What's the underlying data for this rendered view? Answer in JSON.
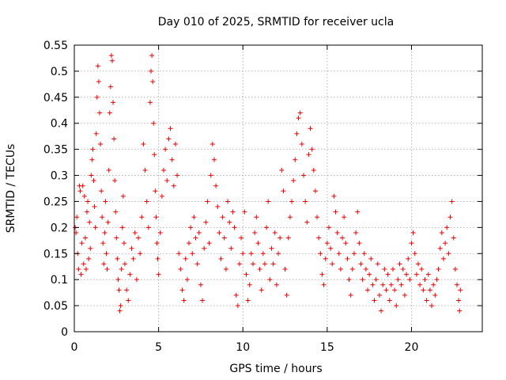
{
  "chart_data": {
    "type": "scatter",
    "title": "Day 010 of 2025, SRMTID for receiver ucla",
    "xlabel": "GPS time / hours",
    "ylabel": "SRMTID / TECUs",
    "xlim": [
      0,
      24.2
    ],
    "ylim": [
      0,
      0.55
    ],
    "x_ticks": [
      0,
      5,
      10,
      15,
      20
    ],
    "x_tick_labels": [
      "0",
      "5",
      "10",
      "15",
      "20"
    ],
    "y_ticks": [
      0,
      0.05,
      0.1,
      0.15,
      0.2,
      0.25,
      0.3,
      0.35,
      0.4,
      0.45,
      0.5,
      0.55
    ],
    "y_tick_labels": [
      "0",
      "0.05",
      "0.1",
      "0.15",
      "0.2",
      "0.25",
      "0.3",
      "0.35",
      "0.4",
      "0.45",
      "0.5",
      "0.55"
    ],
    "grid": true,
    "marker": "+",
    "marker_color": "#ee0000",
    "series": [
      {
        "name": "SRMTID",
        "points": [
          [
            0.05,
            0.2
          ],
          [
            0.1,
            0.19
          ],
          [
            0.15,
            0.22
          ],
          [
            0.2,
            0.15
          ],
          [
            0.25,
            0.12
          ],
          [
            0.3,
            0.28
          ],
          [
            0.35,
            0.27
          ],
          [
            0.4,
            0.11
          ],
          [
            0.45,
            0.17
          ],
          [
            0.5,
            0.28
          ],
          [
            0.55,
            0.13
          ],
          [
            0.6,
            0.26
          ],
          [
            0.65,
            0.18
          ],
          [
            0.7,
            0.12
          ],
          [
            0.75,
            0.23
          ],
          [
            0.8,
            0.25
          ],
          [
            0.85,
            0.14
          ],
          [
            0.9,
            0.21
          ],
          [
            0.95,
            0.16
          ],
          [
            1.0,
            0.3
          ],
          [
            1.05,
            0.33
          ],
          [
            1.1,
            0.35
          ],
          [
            1.15,
            0.29
          ],
          [
            1.2,
            0.24
          ],
          [
            1.25,
            0.2
          ],
          [
            1.3,
            0.38
          ],
          [
            1.35,
            0.45
          ],
          [
            1.4,
            0.51
          ],
          [
            1.45,
            0.48
          ],
          [
            1.5,
            0.42
          ],
          [
            1.55,
            0.36
          ],
          [
            1.6,
            0.27
          ],
          [
            1.65,
            0.22
          ],
          [
            1.7,
            0.17
          ],
          [
            1.75,
            0.13
          ],
          [
            1.8,
            0.19
          ],
          [
            1.85,
            0.25
          ],
          [
            1.9,
            0.15
          ],
          [
            1.95,
            0.12
          ],
          [
            2.0,
            0.21
          ],
          [
            2.05,
            0.31
          ],
          [
            2.1,
            0.42
          ],
          [
            2.15,
            0.47
          ],
          [
            2.2,
            0.53
          ],
          [
            2.25,
            0.52
          ],
          [
            2.3,
            0.44
          ],
          [
            2.35,
            0.37
          ],
          [
            2.4,
            0.29
          ],
          [
            2.45,
            0.23
          ],
          [
            2.5,
            0.18
          ],
          [
            2.55,
            0.14
          ],
          [
            2.6,
            0.1
          ],
          [
            2.65,
            0.08
          ],
          [
            2.7,
            0.04
          ],
          [
            2.75,
            0.05
          ],
          [
            2.8,
            0.12
          ],
          [
            2.85,
            0.2
          ],
          [
            2.9,
            0.26
          ],
          [
            2.95,
            0.17
          ],
          [
            3.0,
            0.13
          ],
          [
            3.1,
            0.08
          ],
          [
            3.2,
            0.06
          ],
          [
            3.3,
            0.11
          ],
          [
            3.4,
            0.16
          ],
          [
            3.5,
            0.14
          ],
          [
            3.6,
            0.19
          ],
          [
            3.7,
            0.1
          ],
          [
            3.8,
            0.18
          ],
          [
            3.9,
            0.15
          ],
          [
            4.0,
            0.22
          ],
          [
            4.1,
            0.36
          ],
          [
            4.2,
            0.31
          ],
          [
            4.3,
            0.25
          ],
          [
            4.4,
            0.2
          ],
          [
            4.5,
            0.44
          ],
          [
            4.55,
            0.5
          ],
          [
            4.6,
            0.53
          ],
          [
            4.65,
            0.48
          ],
          [
            4.7,
            0.4
          ],
          [
            4.75,
            0.34
          ],
          [
            4.8,
            0.27
          ],
          [
            4.85,
            0.22
          ],
          [
            4.9,
            0.17
          ],
          [
            4.95,
            0.14
          ],
          [
            5.0,
            0.11
          ],
          [
            5.1,
            0.19
          ],
          [
            5.2,
            0.26
          ],
          [
            5.3,
            0.31
          ],
          [
            5.4,
            0.35
          ],
          [
            5.5,
            0.29
          ],
          [
            5.6,
            0.37
          ],
          [
            5.7,
            0.39
          ],
          [
            5.8,
            0.33
          ],
          [
            5.9,
            0.28
          ],
          [
            6.0,
            0.36
          ],
          [
            6.1,
            0.3
          ],
          [
            6.2,
            0.15
          ],
          [
            6.3,
            0.12
          ],
          [
            6.4,
            0.08
          ],
          [
            6.5,
            0.06
          ],
          [
            6.6,
            0.14
          ],
          [
            6.7,
            0.1
          ],
          [
            6.8,
            0.17
          ],
          [
            6.9,
            0.2
          ],
          [
            7.0,
            0.15
          ],
          [
            7.1,
            0.22
          ],
          [
            7.2,
            0.18
          ],
          [
            7.3,
            0.13
          ],
          [
            7.4,
            0.19
          ],
          [
            7.5,
            0.09
          ],
          [
            7.6,
            0.06
          ],
          [
            7.7,
            0.16
          ],
          [
            7.8,
            0.21
          ],
          [
            7.9,
            0.25
          ],
          [
            8.0,
            0.17
          ],
          [
            8.1,
            0.3
          ],
          [
            8.2,
            0.36
          ],
          [
            8.3,
            0.33
          ],
          [
            8.4,
            0.28
          ],
          [
            8.5,
            0.24
          ],
          [
            8.6,
            0.19
          ],
          [
            8.7,
            0.14
          ],
          [
            8.8,
            0.22
          ],
          [
            8.9,
            0.18
          ],
          [
            9.0,
            0.12
          ],
          [
            9.1,
            0.25
          ],
          [
            9.2,
            0.21
          ],
          [
            9.3,
            0.16
          ],
          [
            9.4,
            0.23
          ],
          [
            9.5,
            0.2
          ],
          [
            9.6,
            0.07
          ],
          [
            9.7,
            0.05
          ],
          [
            9.8,
            0.13
          ],
          [
            9.9,
            0.18
          ],
          [
            10.0,
            0.15
          ],
          [
            10.1,
            0.23
          ],
          [
            10.2,
            0.11
          ],
          [
            10.3,
            0.06
          ],
          [
            10.4,
            0.09
          ],
          [
            10.5,
            0.15
          ],
          [
            10.6,
            0.13
          ],
          [
            10.7,
            0.19
          ],
          [
            10.8,
            0.22
          ],
          [
            10.9,
            0.17
          ],
          [
            11.0,
            0.12
          ],
          [
            11.1,
            0.08
          ],
          [
            11.2,
            0.15
          ],
          [
            11.3,
            0.13
          ],
          [
            11.4,
            0.2
          ],
          [
            11.5,
            0.25
          ],
          [
            11.6,
            0.1
          ],
          [
            11.7,
            0.16
          ],
          [
            11.8,
            0.13
          ],
          [
            11.9,
            0.19
          ],
          [
            12.0,
            0.09
          ],
          [
            12.1,
            0.15
          ],
          [
            12.2,
            0.18
          ],
          [
            12.3,
            0.31
          ],
          [
            12.4,
            0.27
          ],
          [
            12.5,
            0.12
          ],
          [
            12.6,
            0.07
          ],
          [
            12.7,
            0.18
          ],
          [
            12.8,
            0.22
          ],
          [
            12.9,
            0.25
          ],
          [
            13.0,
            0.29
          ],
          [
            13.1,
            0.33
          ],
          [
            13.2,
            0.38
          ],
          [
            13.3,
            0.41
          ],
          [
            13.4,
            0.42
          ],
          [
            13.5,
            0.36
          ],
          [
            13.6,
            0.3
          ],
          [
            13.7,
            0.25
          ],
          [
            13.8,
            0.21
          ],
          [
            13.9,
            0.34
          ],
          [
            14.0,
            0.39
          ],
          [
            14.1,
            0.35
          ],
          [
            14.2,
            0.31
          ],
          [
            14.3,
            0.27
          ],
          [
            14.4,
            0.22
          ],
          [
            14.5,
            0.18
          ],
          [
            14.6,
            0.15
          ],
          [
            14.7,
            0.11
          ],
          [
            14.8,
            0.09
          ],
          [
            14.9,
            0.14
          ],
          [
            15.0,
            0.17
          ],
          [
            15.1,
            0.2
          ],
          [
            15.2,
            0.16
          ],
          [
            15.3,
            0.13
          ],
          [
            15.4,
            0.26
          ],
          [
            15.5,
            0.23
          ],
          [
            15.6,
            0.19
          ],
          [
            15.7,
            0.15
          ],
          [
            15.8,
            0.12
          ],
          [
            15.9,
            0.18
          ],
          [
            16.0,
            0.22
          ],
          [
            16.1,
            0.17
          ],
          [
            16.2,
            0.14
          ],
          [
            16.3,
            0.1
          ],
          [
            16.4,
            0.07
          ],
          [
            16.5,
            0.12
          ],
          [
            16.6,
            0.15
          ],
          [
            16.7,
            0.19
          ],
          [
            16.8,
            0.23
          ],
          [
            16.9,
            0.17
          ],
          [
            17.0,
            0.13
          ],
          [
            17.1,
            0.1
          ],
          [
            17.2,
            0.15
          ],
          [
            17.3,
            0.12
          ],
          [
            17.4,
            0.08
          ],
          [
            17.5,
            0.11
          ],
          [
            17.6,
            0.14
          ],
          [
            17.7,
            0.09
          ],
          [
            17.8,
            0.06
          ],
          [
            17.9,
            0.1
          ],
          [
            18.0,
            0.13
          ],
          [
            18.1,
            0.07
          ],
          [
            18.2,
            0.04
          ],
          [
            18.3,
            0.09
          ],
          [
            18.4,
            0.12
          ],
          [
            18.5,
            0.08
          ],
          [
            18.6,
            0.11
          ],
          [
            18.7,
            0.06
          ],
          [
            18.8,
            0.09
          ],
          [
            18.9,
            0.12
          ],
          [
            19.0,
            0.08
          ],
          [
            19.1,
            0.05
          ],
          [
            19.2,
            0.1
          ],
          [
            19.3,
            0.13
          ],
          [
            19.4,
            0.09
          ],
          [
            19.5,
            0.12
          ],
          [
            19.6,
            0.07
          ],
          [
            19.7,
            0.11
          ],
          [
            19.8,
            0.14
          ],
          [
            19.9,
            0.1
          ],
          [
            20.0,
            0.17
          ],
          [
            20.1,
            0.19
          ],
          [
            20.2,
            0.15
          ],
          [
            20.3,
            0.11
          ],
          [
            20.4,
            0.13
          ],
          [
            20.5,
            0.09
          ],
          [
            20.6,
            0.12
          ],
          [
            20.7,
            0.08
          ],
          [
            20.8,
            0.1
          ],
          [
            20.9,
            0.06
          ],
          [
            21.0,
            0.11
          ],
          [
            21.1,
            0.08
          ],
          [
            21.2,
            0.05
          ],
          [
            21.3,
            0.09
          ],
          [
            21.4,
            0.07
          ],
          [
            21.5,
            0.1
          ],
          [
            21.6,
            0.12
          ],
          [
            21.7,
            0.16
          ],
          [
            21.8,
            0.19
          ],
          [
            21.9,
            0.14
          ],
          [
            22.0,
            0.17
          ],
          [
            22.1,
            0.2
          ],
          [
            22.2,
            0.15
          ],
          [
            22.3,
            0.22
          ],
          [
            22.4,
            0.25
          ],
          [
            22.5,
            0.18
          ],
          [
            22.6,
            0.12
          ],
          [
            22.7,
            0.09
          ],
          [
            22.8,
            0.06
          ],
          [
            22.85,
            0.04
          ],
          [
            22.9,
            0.08
          ]
        ]
      }
    ]
  }
}
